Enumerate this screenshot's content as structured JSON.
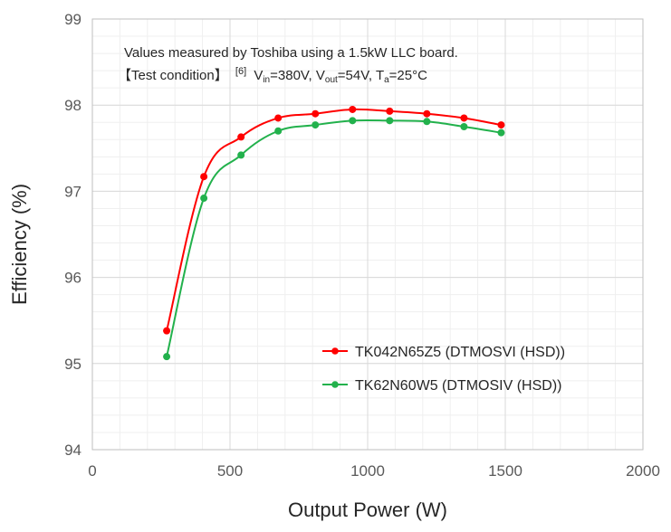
{
  "chart_data": {
    "type": "line",
    "annotation": {
      "line1": "Values measured by Toshiba using a 1.5kW LLC board.",
      "line2_prefix": "【Test condition】",
      "ref": "[6]",
      "vin_label": "V",
      "vin_sub": "in",
      "vin_value": "=380V, ",
      "vout_label": "V",
      "vout_sub": "out",
      "vout_value": "=54V, ",
      "ta_label": "T",
      "ta_sub": "a",
      "ta_value": "=25°C"
    },
    "xlabel": "Output Power (W)",
    "ylabel": "Efficiency (%)",
    "xlim": [
      0,
      2000
    ],
    "ylim": [
      94,
      99
    ],
    "xticks": [
      "0",
      "500",
      "1000",
      "1500",
      "2000"
    ],
    "yticks": [
      "94",
      "95",
      "96",
      "97",
      "98",
      "99"
    ],
    "grid": true,
    "legend_position": "center-right",
    "series": [
      {
        "name": "TK042N65Z5 (DTMOSVI (HSD))",
        "color": "#ff0000",
        "x": [
          270,
          405,
          540,
          675,
          810,
          945,
          1080,
          1215,
          1350,
          1485
        ],
        "y": [
          95.38,
          97.17,
          97.63,
          97.85,
          97.9,
          97.95,
          97.93,
          97.9,
          97.85,
          97.77
        ]
      },
      {
        "name": "TK62N60W5 (DTMOSIV (HSD))",
        "color": "#22b14c",
        "x": [
          270,
          405,
          540,
          675,
          810,
          945,
          1080,
          1215,
          1350,
          1485
        ],
        "y": [
          95.08,
          96.92,
          97.42,
          97.7,
          97.77,
          97.82,
          97.82,
          97.81,
          97.75,
          97.68
        ]
      }
    ]
  }
}
